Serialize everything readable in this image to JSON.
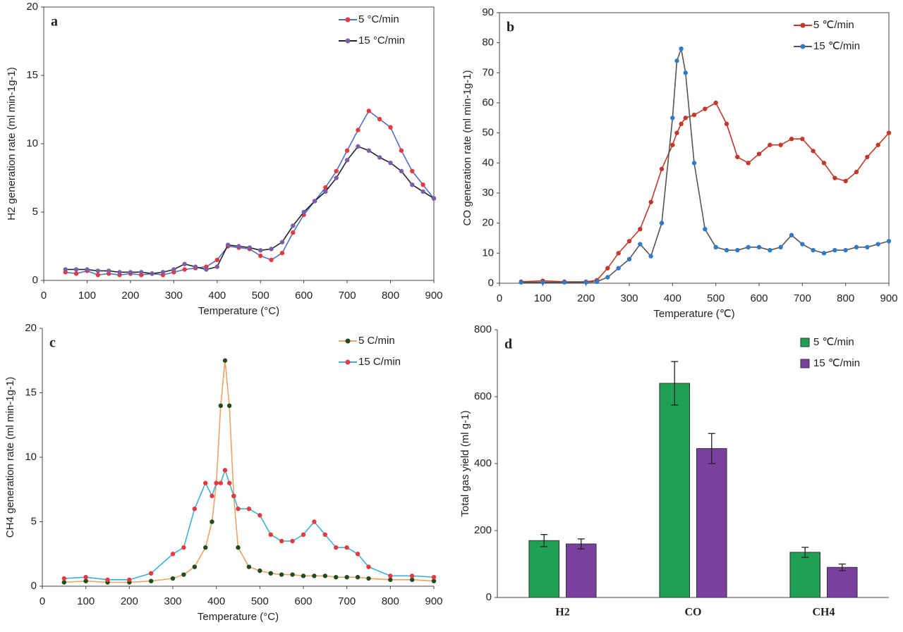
{
  "chart_data": [
    {
      "type": "line",
      "label": "a",
      "x_label": "Temperature (°C)",
      "y_label": "H2 generation rate (ml min-1g-1)",
      "x": [
        50,
        75,
        100,
        125,
        150,
        175,
        200,
        225,
        250,
        275,
        300,
        325,
        350,
        375,
        400,
        425,
        450,
        475,
        500,
        525,
        550,
        575,
        600,
        625,
        650,
        675,
        700,
        725,
        750,
        775,
        800,
        825,
        850,
        875,
        900
      ],
      "series": [
        {
          "name": "5 °C/min",
          "color": "#e8393f",
          "line_color": "#4a6fd0",
          "values": [
            0.6,
            0.5,
            0.7,
            0.4,
            0.5,
            0.4,
            0.5,
            0.4,
            0.5,
            0.4,
            0.6,
            0.8,
            0.9,
            1.0,
            1.5,
            2.5,
            2.4,
            2.3,
            1.8,
            1.5,
            2.0,
            3.5,
            4.8,
            5.8,
            6.8,
            8.0,
            9.5,
            11.0,
            12.4,
            11.8,
            11.2,
            9.5,
            8.0,
            7.0,
            6.0
          ]
        },
        {
          "name": "15 °C/min",
          "color": "#7b5ea7",
          "line_color": "#222222",
          "values": [
            0.8,
            0.8,
            0.8,
            0.7,
            0.7,
            0.6,
            0.6,
            0.6,
            0.5,
            0.6,
            0.8,
            1.2,
            1.0,
            0.8,
            1.0,
            2.6,
            2.5,
            2.4,
            2.2,
            2.3,
            2.8,
            4.0,
            5.0,
            5.8,
            6.5,
            7.5,
            8.8,
            9.8,
            9.5,
            9.0,
            8.6,
            8.0,
            7.0,
            6.5,
            6.0
          ]
        }
      ],
      "xlim": [
        0,
        900
      ],
      "xticks": [
        0,
        100,
        200,
        300,
        400,
        500,
        600,
        700,
        800,
        900
      ],
      "ylim": [
        0,
        20
      ],
      "yticks": [
        0,
        5,
        10,
        15,
        20
      ],
      "frame": true,
      "legend": "upper right"
    },
    {
      "type": "line",
      "label": "b",
      "x_label": "Temperature (℃)",
      "y_label": "CO generation rate (ml min-1g-1)",
      "x": [
        50,
        100,
        150,
        200,
        225,
        250,
        275,
        300,
        325,
        350,
        375,
        400,
        410,
        420,
        430,
        450,
        475,
        500,
        525,
        550,
        575,
        600,
        625,
        650,
        675,
        700,
        725,
        750,
        775,
        800,
        825,
        850,
        875,
        900
      ],
      "series": [
        {
          "name": "5 ℃/min",
          "color": "#c0392b",
          "line_color": "#c0392b",
          "values": [
            0.5,
            0.8,
            0.5,
            0.5,
            1,
            5,
            10,
            14,
            18,
            27,
            38,
            46,
            50,
            53,
            55,
            56,
            58,
            60,
            53,
            42,
            40,
            43,
            46,
            46,
            48,
            48,
            44,
            40,
            35,
            34,
            37,
            42,
            46,
            50
          ]
        },
        {
          "name": "15 ℃/min",
          "color": "#2e7bc8",
          "line_color": "#555555",
          "values": [
            0.3,
            0.3,
            0.3,
            0.3,
            0.5,
            2,
            5,
            8,
            13,
            9,
            20,
            55,
            74,
            78,
            70,
            40,
            18,
            12,
            11,
            11,
            12,
            12,
            11,
            12,
            16,
            13,
            11,
            10,
            11,
            11,
            12,
            12,
            13,
            14
          ]
        }
      ],
      "xlim": [
        0,
        900
      ],
      "xticks": [
        0,
        100,
        200,
        300,
        400,
        500,
        600,
        700,
        800,
        900
      ],
      "ylim": [
        0,
        90
      ],
      "yticks": [
        0,
        10,
        20,
        30,
        40,
        50,
        60,
        70,
        80,
        90
      ],
      "frame": true,
      "legend": "upper right"
    },
    {
      "type": "line",
      "label": "c",
      "x_label": "Temperature (°C)",
      "y_label": "CH4 generation rate (ml min-1g-1)",
      "x": [
        50,
        100,
        150,
        200,
        250,
        300,
        325,
        350,
        375,
        390,
        400,
        410,
        420,
        430,
        440,
        450,
        475,
        500,
        525,
        550,
        575,
        600,
        625,
        650,
        675,
        700,
        725,
        750,
        800,
        850,
        900
      ],
      "series": [
        {
          "name": "5 C/min",
          "color": "#1f4d1f",
          "line_color": "#f0a060",
          "values": [
            0.3,
            0.4,
            0.3,
            0.3,
            0.4,
            0.6,
            0.9,
            1.5,
            3,
            5,
            8,
            14,
            17.5,
            14,
            7,
            3,
            1.5,
            1.2,
            1,
            0.9,
            0.9,
            0.8,
            0.8,
            0.8,
            0.7,
            0.7,
            0.7,
            0.6,
            0.5,
            0.5,
            0.4
          ]
        },
        {
          "name": "15 C/min",
          "color": "#e8393f",
          "line_color": "#3ab0e0",
          "values": [
            0.6,
            0.7,
            0.5,
            0.5,
            1,
            2.5,
            3,
            6,
            8,
            7,
            8,
            8,
            9,
            8,
            7,
            6,
            6,
            5.5,
            4,
            3.5,
            3.5,
            4,
            5,
            4,
            3,
            3,
            2.5,
            1.5,
            0.8,
            0.8,
            0.7
          ]
        }
      ],
      "xlim": [
        0,
        900
      ],
      "xticks": [
        0,
        100,
        200,
        300,
        400,
        500,
        600,
        700,
        800,
        900
      ],
      "ylim": [
        0,
        20
      ],
      "yticks": [
        0,
        5,
        10,
        15,
        20
      ],
      "frame": false,
      "legend": "upper right"
    },
    {
      "type": "bar",
      "label": "d",
      "y_label": "Total gas yield (ml g-1)",
      "categories": [
        "H2",
        "CO",
        "CH4"
      ],
      "series": [
        {
          "name": "5 ℃/min",
          "color": "#1fa055",
          "values": [
            170,
            640,
            135
          ],
          "errors": [
            18,
            65,
            15
          ]
        },
        {
          "name": "15 ℃/min",
          "color": "#7b3fa0",
          "values": [
            160,
            445,
            90
          ],
          "errors": [
            15,
            45,
            10
          ]
        }
      ],
      "ylim": [
        0,
        800
      ],
      "yticks": [
        0,
        200,
        400,
        600,
        800
      ],
      "frame": false,
      "legend": "upper right"
    }
  ]
}
